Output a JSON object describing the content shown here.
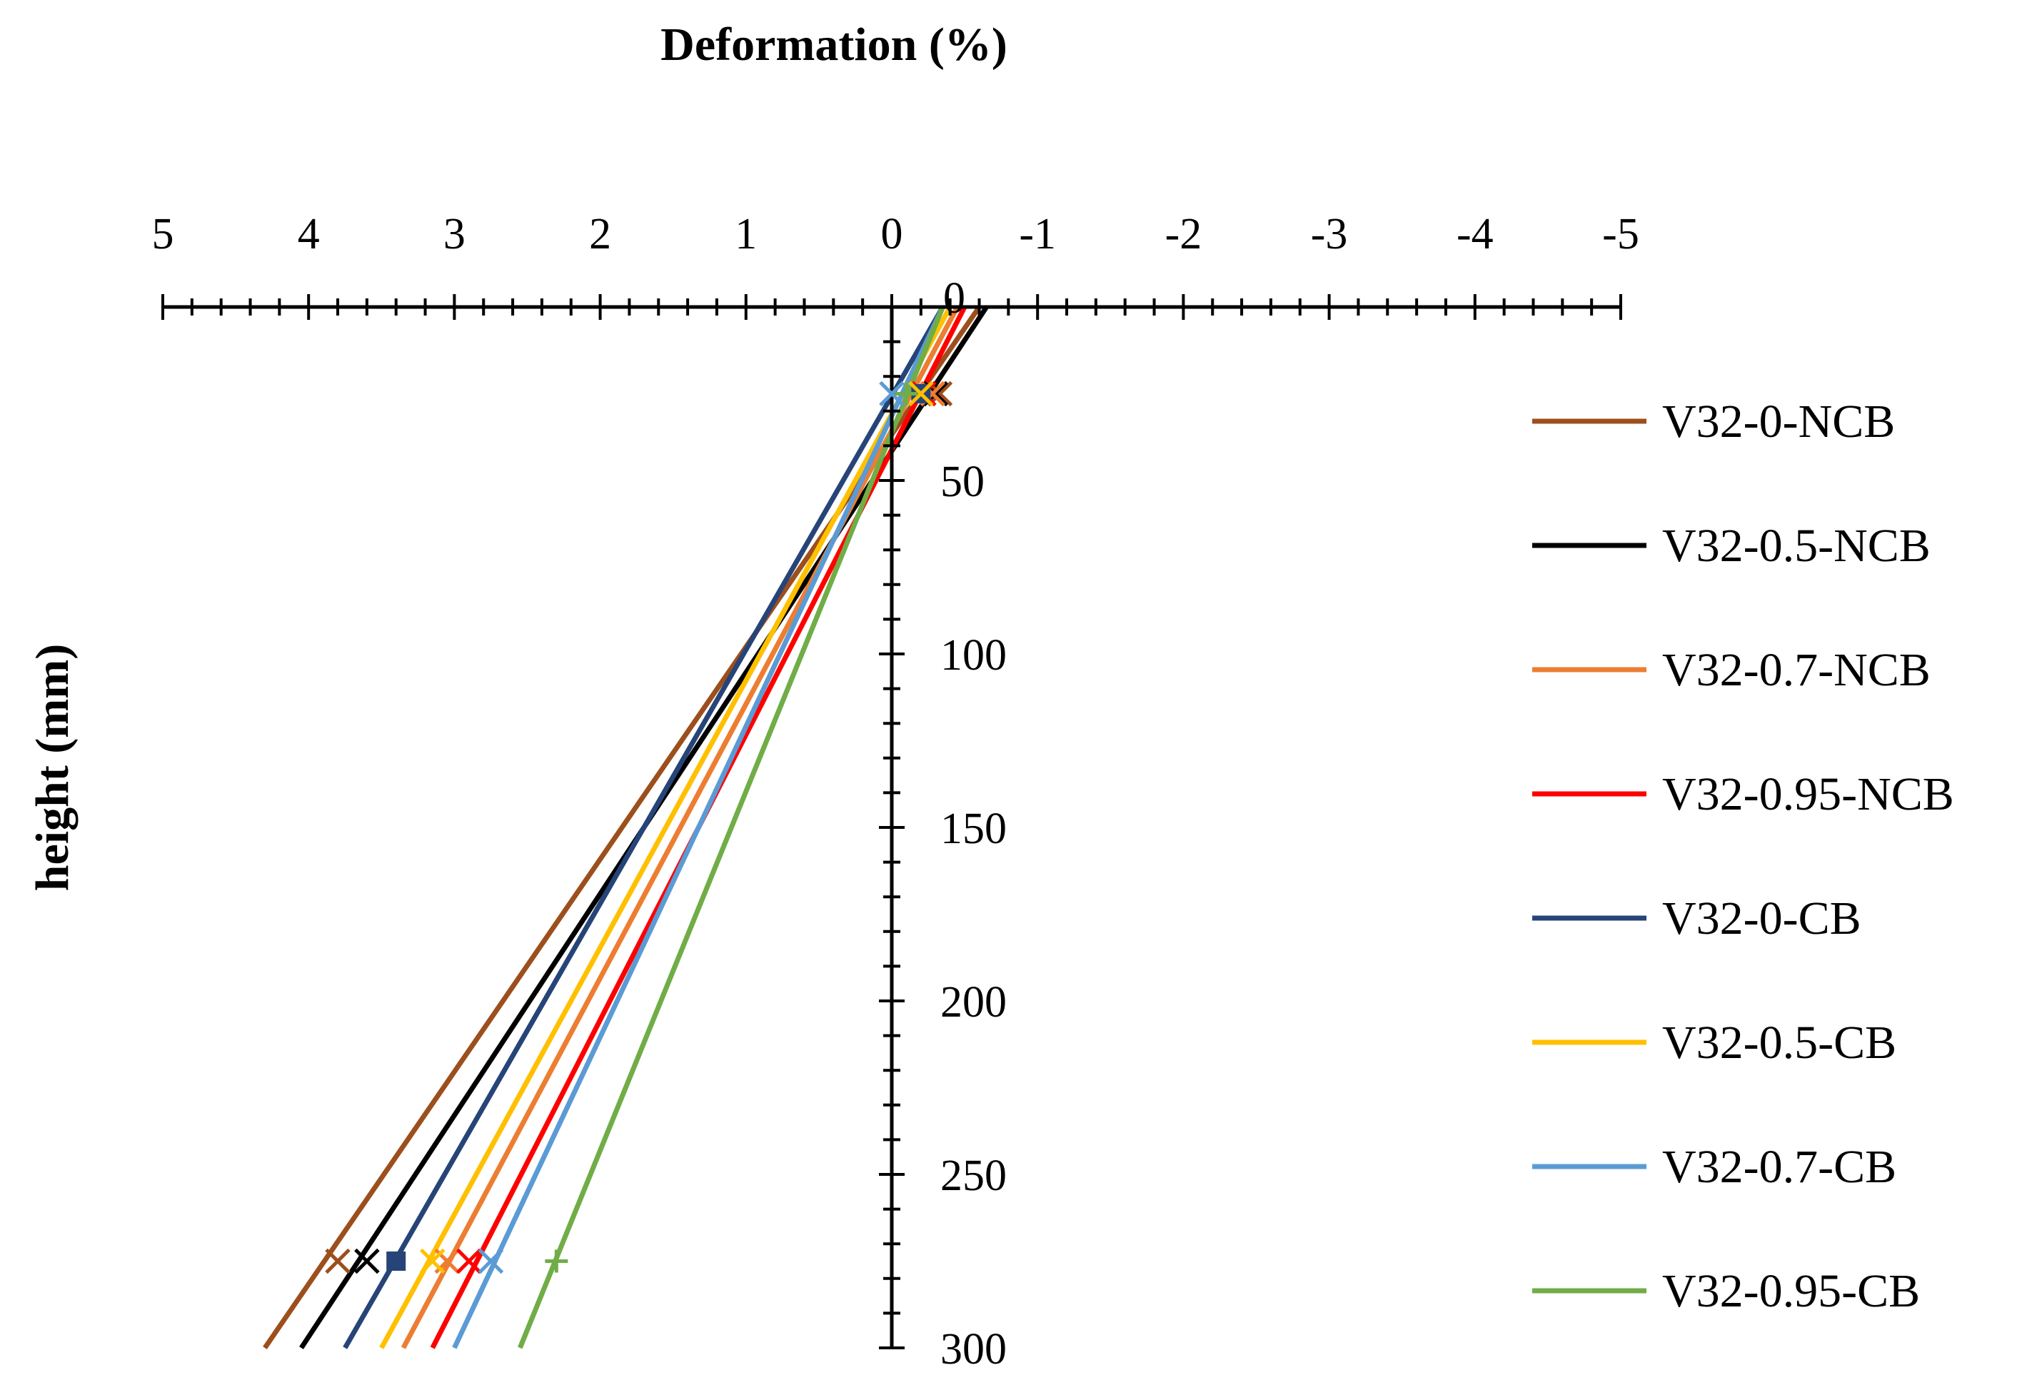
{
  "chart_data": {
    "type": "line",
    "title": "Deformation (%)",
    "xlabel": "Deformation (%)",
    "ylabel": "height (mm)",
    "xlim": [
      5,
      -5
    ],
    "ylim": [
      0,
      300
    ],
    "x_ticks": [
      5,
      4,
      3,
      2,
      1,
      0,
      -1,
      -2,
      -3,
      -4,
      -5
    ],
    "x_tick_labels": [
      "5",
      "4",
      "3",
      "2",
      "1",
      "0",
      "-1",
      "-2",
      "-3",
      "-4",
      "-5"
    ],
    "y_ticks": [
      0,
      50,
      100,
      150,
      200,
      250,
      300
    ],
    "y_tick_labels": [
      "0",
      "50",
      "100",
      "150",
      "200",
      "250",
      "300"
    ],
    "legend_position": "right",
    "series": [
      {
        "name": "V32-0-NCB",
        "color": "#9C4F1C",
        "marker": "x",
        "points": [
          [
            -0.33,
            25
          ],
          [
            3.8,
            275
          ]
        ],
        "line": [
          [
            -0.6,
            0
          ],
          [
            4.3,
            300
          ]
        ]
      },
      {
        "name": "V32-0.5-NCB",
        "color": "#000000",
        "marker": "x",
        "points": [
          [
            -0.3,
            25
          ],
          [
            3.6,
            275
          ]
        ],
        "line": [
          [
            -0.65,
            0
          ],
          [
            4.05,
            300
          ]
        ]
      },
      {
        "name": "V32-0.7-NCB",
        "color": "#ED7D31",
        "marker": "x",
        "points": [
          [
            -0.28,
            25
          ],
          [
            3.05,
            275
          ]
        ],
        "line": [
          [
            -0.45,
            0
          ],
          [
            3.35,
            300
          ]
        ]
      },
      {
        "name": "V32-0.95-NCB",
        "color": "#FF0000",
        "marker": "x",
        "points": [
          [
            -0.22,
            25
          ],
          [
            2.9,
            275
          ]
        ],
        "line": [
          [
            -0.5,
            0
          ],
          [
            3.15,
            300
          ]
        ]
      },
      {
        "name": "V32-0-CB",
        "color": "#264478",
        "marker": "square",
        "points": [
          [
            -0.2,
            25
          ],
          [
            3.4,
            275
          ]
        ],
        "line": [
          [
            -0.35,
            0
          ],
          [
            3.75,
            300
          ]
        ]
      },
      {
        "name": "V32-0.5-CB",
        "color": "#FFC000",
        "marker": "x",
        "points": [
          [
            -0.2,
            25
          ],
          [
            3.15,
            275
          ]
        ],
        "line": [
          [
            -0.4,
            0
          ],
          [
            3.5,
            300
          ]
        ]
      },
      {
        "name": "V32-0.7-CB",
        "color": "#5B9BD5",
        "marker": "x",
        "points": [
          [
            0.0,
            25
          ],
          [
            2.75,
            275
          ]
        ],
        "line": [
          [
            -0.35,
            0
          ],
          [
            3.0,
            300
          ]
        ]
      },
      {
        "name": "V32-0.95-CB",
        "color": "#70AD47",
        "marker": "plus",
        "points": [
          [
            -0.1,
            25
          ],
          [
            2.3,
            275
          ]
        ],
        "line": [
          [
            -0.35,
            0
          ],
          [
            2.55,
            300
          ]
        ]
      }
    ]
  }
}
